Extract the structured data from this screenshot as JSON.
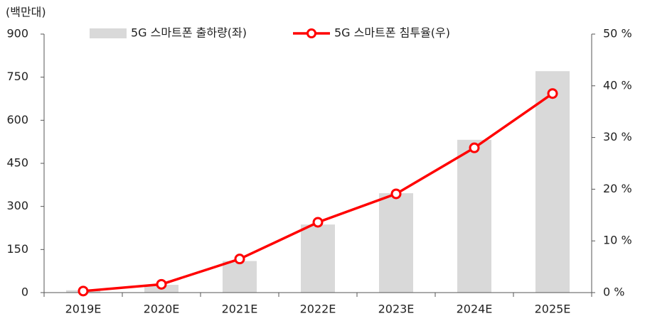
{
  "chart_data": {
    "type": "combo",
    "y_axis_label": "(백만대)",
    "categories": [
      "2019E",
      "2020E",
      "2021E",
      "2022E",
      "2023E",
      "2024E",
      "2025E"
    ],
    "series": [
      {
        "name": "5G 스마트폰 출하량(좌)",
        "type": "bar",
        "color": "#d9d9d9",
        "values": [
          8,
          27,
          110,
          237,
          346,
          532,
          771
        ]
      },
      {
        "name": "5G 스마트폰 침투율(우)",
        "type": "line",
        "axis": "y2",
        "color": "#ff0000",
        "values": [
          0.3,
          1.6,
          6.5,
          13.6,
          19.1,
          28.0,
          38.5
        ]
      }
    ],
    "ylim": [
      0,
      900
    ],
    "yticks": [
      0,
      150,
      300,
      450,
      600,
      750,
      900
    ],
    "y2lim": [
      0,
      50
    ],
    "y2ticks": [
      {
        "value": 0,
        "label": "0 %"
      },
      {
        "value": 10,
        "label": "10 %"
      },
      {
        "value": 20,
        "label": "20 %"
      },
      {
        "value": 30,
        "label": "30 %"
      },
      {
        "value": 40,
        "label": "40 %"
      },
      {
        "value": 50,
        "label": "50 %"
      }
    ]
  }
}
